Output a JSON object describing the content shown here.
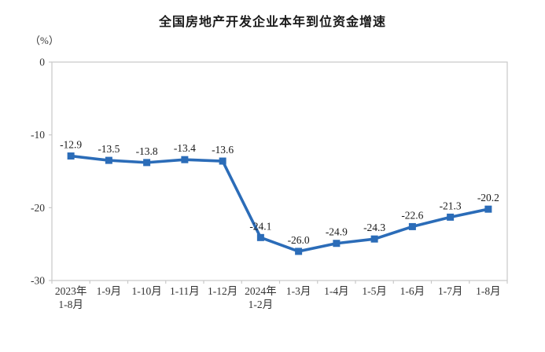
{
  "chart_data": {
    "type": "line",
    "title": "全国房地产开发企业本年到位资金增速",
    "unit": "（%）",
    "categories": [
      [
        "2023年",
        "1-8月"
      ],
      [
        "1-9月"
      ],
      [
        "1-10月"
      ],
      [
        "1-11月"
      ],
      [
        "1-12月"
      ],
      [
        "2024年",
        "1-2月"
      ],
      [
        "1-3月"
      ],
      [
        "1-4月"
      ],
      [
        "1-5月"
      ],
      [
        "1-6月"
      ],
      [
        "1-7月"
      ],
      [
        "1-8月"
      ]
    ],
    "values": [
      -12.9,
      -13.5,
      -13.8,
      -13.4,
      -13.6,
      -24.1,
      -26.0,
      -24.9,
      -24.3,
      -22.6,
      -21.3,
      -20.2
    ],
    "labels": [
      "-12.9",
      "-13.5",
      "-13.8",
      "-13.4",
      "-13.6",
      "-24.1",
      "-26.0",
      "-24.9",
      "-24.3",
      "-22.6",
      "-21.3",
      "-20.2"
    ],
    "yticks": [
      0,
      -10,
      -20,
      -30
    ],
    "ytick_labels": [
      "0",
      "-10",
      "-20",
      "-30"
    ],
    "ylim": [
      -30,
      0
    ],
    "xlabel": "",
    "ylabel": "（%）",
    "grid": false,
    "legend_position": "none",
    "marker": "square",
    "line_color": "#2b6cb8",
    "axis_color": "#c9c9c9",
    "text_color": "#333333",
    "label_color": "#1a1a1a",
    "background_color": "#ffffff"
  }
}
